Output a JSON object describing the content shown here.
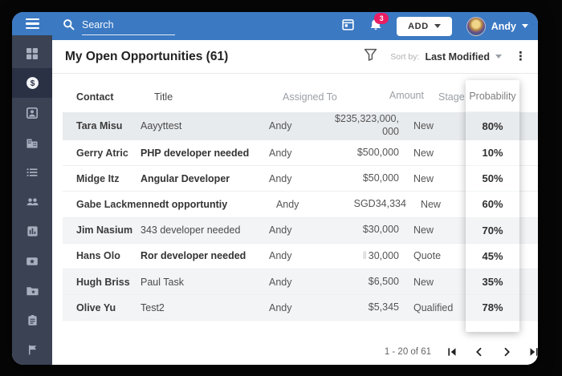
{
  "topbar": {
    "search_placeholder": "Search",
    "notification_count": "3",
    "add_button_label": "ADD",
    "user_name": "Andy",
    "icons": [
      "menu-icon",
      "search-icon",
      "calendar-icon",
      "bell-icon",
      "caret-down-icon",
      "avatar"
    ]
  },
  "sidebar": {
    "active_index": 1,
    "icons": [
      "dashboard-icon",
      "opportunities-dollar-icon",
      "contacts-icon",
      "companies-icon",
      "list-icon",
      "people-icon",
      "reports-chart-icon",
      "activities-star-icon",
      "documents-folder-icon",
      "tasks-clipboard-icon",
      "flag-icon"
    ]
  },
  "header": {
    "title": "My Open Opportunities (61)",
    "filter_icon": "funnel-icon",
    "sort_by_label": "Sort by:",
    "sort_value": "Last Modified",
    "menu_icon": "kebab-icon"
  },
  "table": {
    "columns": {
      "contact": "Contact",
      "title": "Title",
      "assigned": "Assigned To",
      "amount": "Amount",
      "stage": "Stage",
      "probability": "Probability"
    },
    "rows": [
      {
        "contact": "Tara Misu",
        "title": "Aayyttest",
        "title_bold": false,
        "assigned": "Andy",
        "amount_prefix": "",
        "amount": "$235,323,000,000",
        "stage": "New",
        "probability": "80%",
        "shade": "selected",
        "tall": true
      },
      {
        "contact": "Gerry Atric",
        "title": "PHP developer needed",
        "title_bold": true,
        "assigned": "Andy",
        "amount_prefix": "",
        "amount": "$500,000",
        "stage": "New",
        "probability": "10%",
        "shade": "none",
        "tall": false
      },
      {
        "contact": "Midge Itz",
        "title": "Angular Developer",
        "title_bold": true,
        "assigned": "Andy",
        "amount_prefix": "",
        "amount": "$50,000",
        "stage": "New",
        "probability": "50%",
        "shade": "none",
        "tall": false
      },
      {
        "contact": "Gabe Lackmen",
        "title": "nedt opportuntiy",
        "title_bold": true,
        "assigned": "Andy",
        "amount_prefix": "",
        "amount": "SGD34,334",
        "stage": "New",
        "probability": "60%",
        "shade": "none",
        "tall": false
      },
      {
        "contact": "Jim Nasium",
        "title": "343 developer needed",
        "title_bold": false,
        "assigned": "Andy",
        "amount_prefix": "",
        "amount": "$30,000",
        "stage": "New",
        "probability": "70%",
        "shade": "alt",
        "tall": false
      },
      {
        "contact": "Hans Olo",
        "title": "Ror developer needed",
        "title_bold": true,
        "assigned": "Andy",
        "amount_prefix": "‖",
        "amount": "30,000",
        "stage": "Quote",
        "probability": "45%",
        "shade": "none",
        "tall": false
      },
      {
        "contact": "Hugh Briss",
        "title": "Paul Task",
        "title_bold": false,
        "assigned": "Andy",
        "amount_prefix": "",
        "amount": "$6,500",
        "stage": "New",
        "probability": "35%",
        "shade": "alt",
        "tall": false
      },
      {
        "contact": "Olive Yu",
        "title": "Test2",
        "title_bold": false,
        "assigned": "Andy",
        "amount_prefix": "",
        "amount": "$5,345",
        "stage": "Qualified",
        "probability": "78%",
        "shade": "alt",
        "tall": false
      }
    ]
  },
  "pagination": {
    "range_label": "1 - 20 of 61",
    "icons": [
      "first-page-icon",
      "previous-page-icon",
      "next-page-icon",
      "last-page-icon"
    ]
  },
  "colors": {
    "topbar_blue": "#3b79c3",
    "sidebar_navy": "#3a4254",
    "sidebar_active": "#2b3144",
    "badge_pink": "#e91e63",
    "row_selected": "#e8ebee",
    "row_alt": "#f2f4f6"
  }
}
